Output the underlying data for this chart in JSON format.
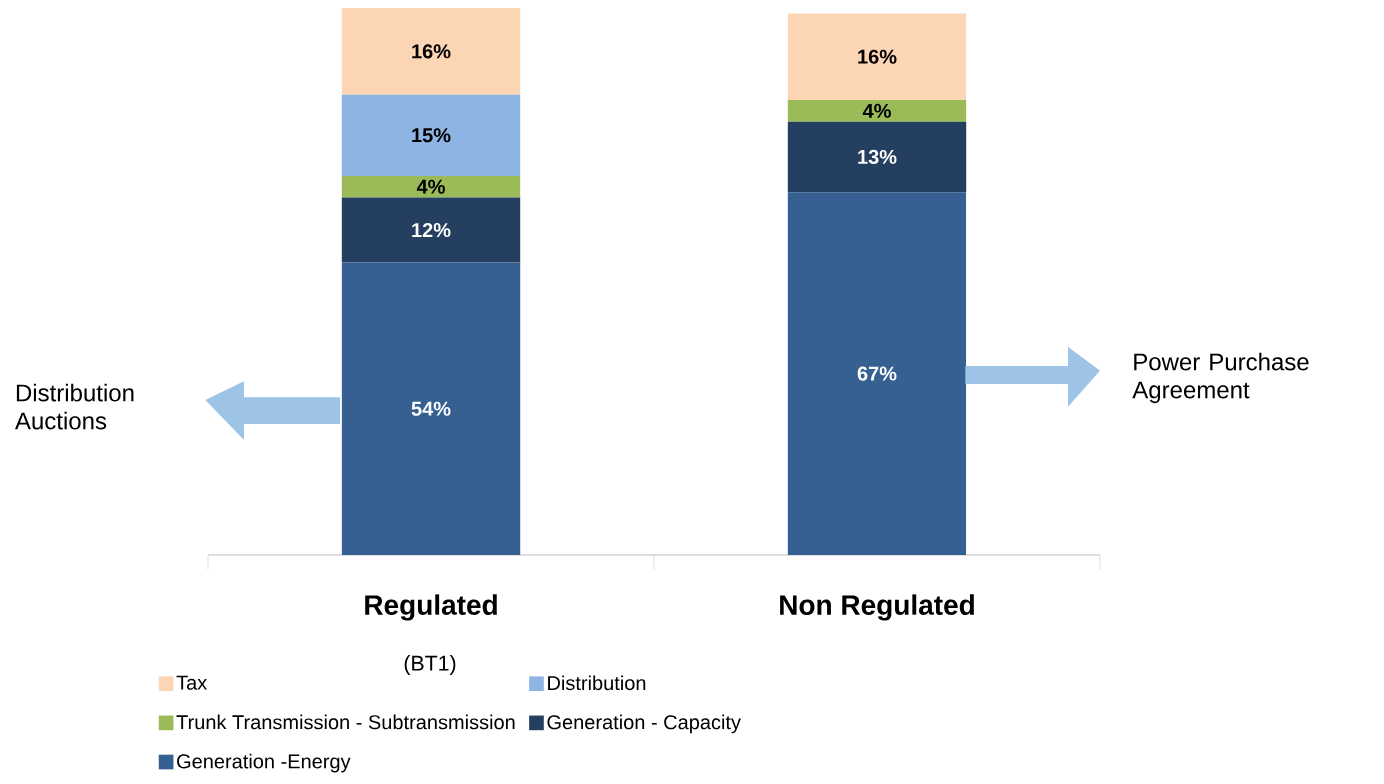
{
  "chart_data": {
    "type": "bar",
    "stacked": true,
    "categories": [
      "Regulated",
      "Non Regulated"
    ],
    "series": [
      {
        "name": "Generation -Energy",
        "color": "#366092",
        "values": [
          54,
          67
        ],
        "value_labels": [
          "54%",
          "67%"
        ]
      },
      {
        "name": "Generation - Capacity",
        "color": "#243f60",
        "values": [
          12,
          13
        ],
        "value_labels": [
          "12%",
          "13%"
        ]
      },
      {
        "name": "Trunk Transmission - Subtransmission",
        "color": "#9bbb59",
        "values": [
          4,
          4
        ],
        "value_labels": [
          "4%",
          "4%"
        ]
      },
      {
        "name": "Distribution",
        "color": "#8db4e2",
        "values": [
          15,
          null
        ],
        "value_labels": [
          "15%",
          null
        ]
      },
      {
        "name": "Tax",
        "color": "#fcd5b4",
        "values": [
          16,
          16
        ],
        "value_labels": [
          "16%",
          "16%"
        ]
      }
    ],
    "legend": "bottom",
    "annotations": [
      "(BT1)",
      "Distribution Auctions",
      "Power Purchase Agreement"
    ]
  }
}
